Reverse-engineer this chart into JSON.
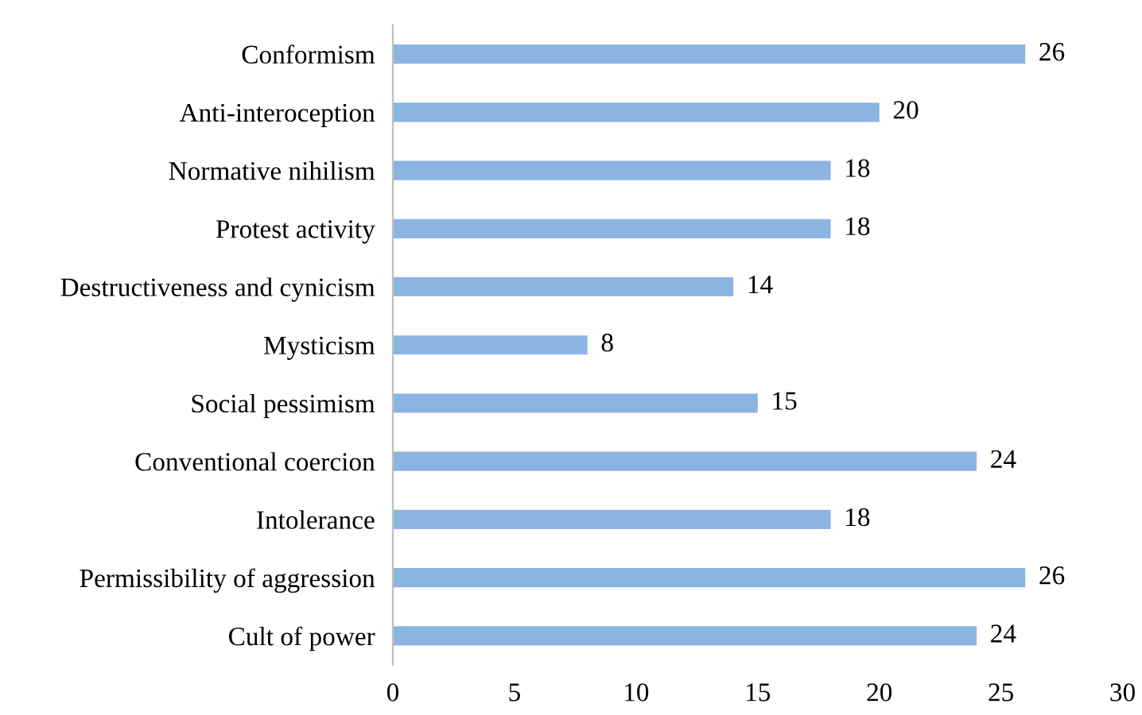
{
  "chart_data": {
    "type": "bar",
    "orientation": "horizontal",
    "categories": [
      "Conformism",
      "Anti-interoception",
      "Normative nihilism",
      "Protest activity",
      "Destructiveness and cynicism",
      "Mysticism",
      "Social pessimism",
      "Conventional coercion",
      "Intolerance",
      "Permissibility of aggression",
      "Cult of power"
    ],
    "values": [
      26,
      20,
      18,
      18,
      14,
      8,
      15,
      24,
      18,
      26,
      24
    ],
    "color": "#8cb4e2",
    "xlim": [
      0,
      30
    ],
    "xticks": [
      0,
      5,
      10,
      15,
      20,
      25,
      30
    ],
    "data_labels": true,
    "grid": false,
    "legend": false
  }
}
